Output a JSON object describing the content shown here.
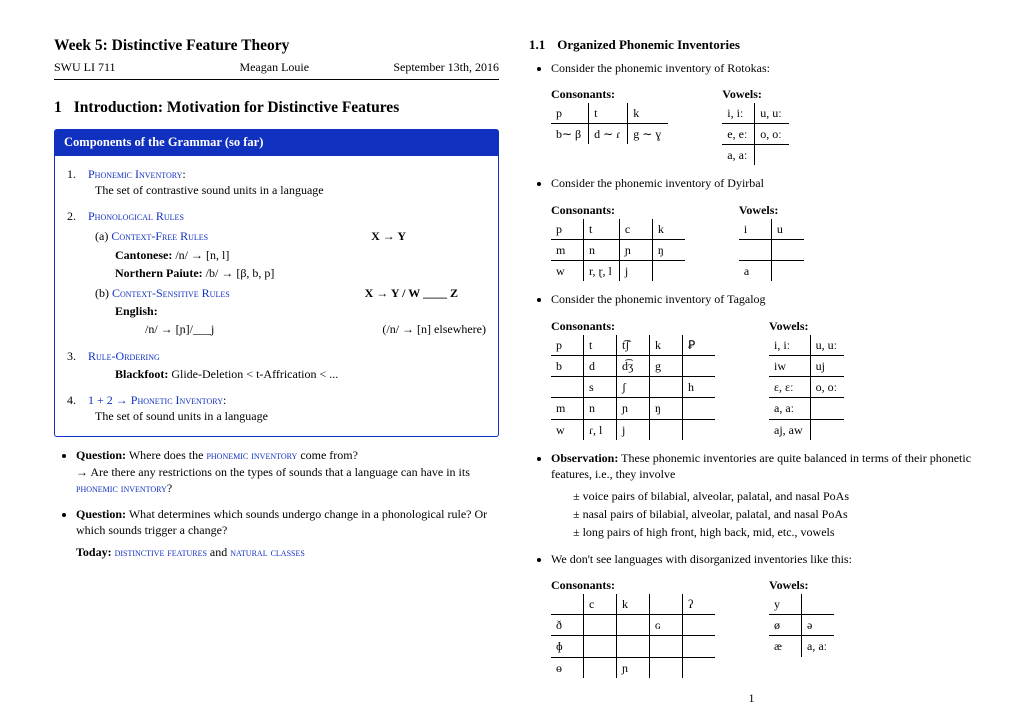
{
  "header": {
    "title": "Week 5: Distinctive Feature Theory",
    "course": "SWU LI 711",
    "author": "Meagan Louie",
    "date": "September 13th, 2016"
  },
  "left": {
    "section_num": "1",
    "section_title": "Introduction: Motivation for Distinctive Features",
    "box_title": "Components of the Grammar (so far)",
    "item1_label": "Phonemic Inventory",
    "item1_desc": "The set of contrastive sound units in a language",
    "item2_label": "Phonological Rules",
    "rule_a_label": "Context-Free Rules",
    "rule_a_schema": "X → Y",
    "cantonese_label": "Cantonese:",
    "cantonese_rule": "/n/ → [n, l]",
    "paiute_label": "Northern Paiute:",
    "paiute_rule": "/b/ → [β, b, p]",
    "rule_b_label": "Context-Sensitive Rules",
    "rule_b_schema": "X → Y / W ____ Z",
    "english_label": "English:",
    "english_rule_left": "/n/ → [ɲ]/___j",
    "english_rule_right": "(/n/ → [n] elsewhere)",
    "item3_label": "Rule-Ordering",
    "blackfoot_label": "Blackfoot:",
    "blackfoot_rule": "Glide-Deletion < t-Affrication < ...",
    "item4_prefix": "1 + 2 →",
    "item4_label": "Phonetic Inventory",
    "item4_desc": "The set of sound units in a language",
    "q1_prefix": "Question:",
    "q1_text_a": "Where does the ",
    "q1_sc": "phonemic inventory",
    "q1_text_b": " come from?",
    "q1_follow_a": "→ Are there any restrictions on the types of sounds that a language can have in its ",
    "q1_follow_sc": "phonemic inventory",
    "q1_follow_b": "?",
    "q2_prefix": "Question:",
    "q2_text": "What determines which sounds undergo change in a phonological rule? Or which sounds trigger a change?",
    "today_prefix": "Today:",
    "today_sc1": "distinctive features",
    "today_mid": " and ",
    "today_sc2": "natural classes"
  },
  "right": {
    "subsec_num": "1.1",
    "subsec_title": "Organized Phonemic Inventories",
    "rotokas_intro": "Consider the phonemic inventory of Rotokas:",
    "cons_label": "Consonants:",
    "vow_label": "Vowels:",
    "rotokas_cons": [
      [
        "p",
        "t",
        "k"
      ],
      [
        "b∼ β",
        "d ∼ ɾ",
        "g ∼ ɣ"
      ]
    ],
    "rotokas_vow": [
      [
        "i, iː",
        "u, uː"
      ],
      [
        "e, eː",
        "o, oː"
      ],
      [
        "a, aː",
        ""
      ]
    ],
    "dyirbal_intro": "Consider the phonemic inventory of Dyirbal",
    "dyirbal_cons": [
      [
        "p",
        "t",
        "c",
        "k"
      ],
      [
        "m",
        "n",
        "ɲ",
        "ŋ"
      ],
      [
        "w",
        "r, ɽ, l",
        "j",
        ""
      ]
    ],
    "dyirbal_vow": [
      [
        "i",
        "u"
      ],
      [
        "",
        ""
      ],
      [
        "a",
        ""
      ]
    ],
    "tagalog_intro": "Consider the phonemic inventory of Tagalog",
    "tagalog_cons": [
      [
        "p",
        "t",
        "t͡ʃ",
        "k",
        "Ꝑ"
      ],
      [
        "b",
        "d",
        "d͡ʒ",
        "g",
        ""
      ],
      [
        "",
        "s",
        "ʃ",
        "",
        "h"
      ],
      [
        "m",
        "n",
        "ɲ",
        "ŋ",
        ""
      ],
      [
        "w",
        "ɾ, l",
        "j",
        "",
        ""
      ]
    ],
    "tagalog_vow": [
      [
        "i, iː",
        "u, uː"
      ],
      [
        "iw",
        "uj"
      ],
      [
        "ɛ, ɛː",
        "o, oː"
      ],
      [
        "a, aː",
        ""
      ],
      [
        "aj, aw",
        ""
      ]
    ],
    "obs_prefix": "Observation:",
    "obs_text": "These phonemic inventories are quite balanced in terms of their phonetic features, i.e., they involve",
    "obs_items": [
      "± voice pairs of bilabial, alveolar, palatal, and nasal PoAs",
      "± nasal pairs of bilabial, alveolar, palatal, and nasal PoAs",
      "± long pairs of high front, high back, mid, etc., vowels"
    ],
    "neg_text": "We don't see languages with disorganized inventories like this:",
    "bad_cons": [
      [
        "",
        "c",
        "k",
        "",
        "ʔ"
      ],
      [
        "ð",
        "",
        "",
        "ɢ",
        ""
      ],
      [
        "ɸ",
        "",
        "",
        "",
        ""
      ],
      [
        "ɵ",
        "",
        "ɲ",
        "",
        ""
      ]
    ],
    "bad_vow": [
      [
        "y",
        ""
      ],
      [
        "ø",
        "ə"
      ],
      [
        "æ",
        "a, aː"
      ]
    ]
  },
  "pagenum": "1"
}
